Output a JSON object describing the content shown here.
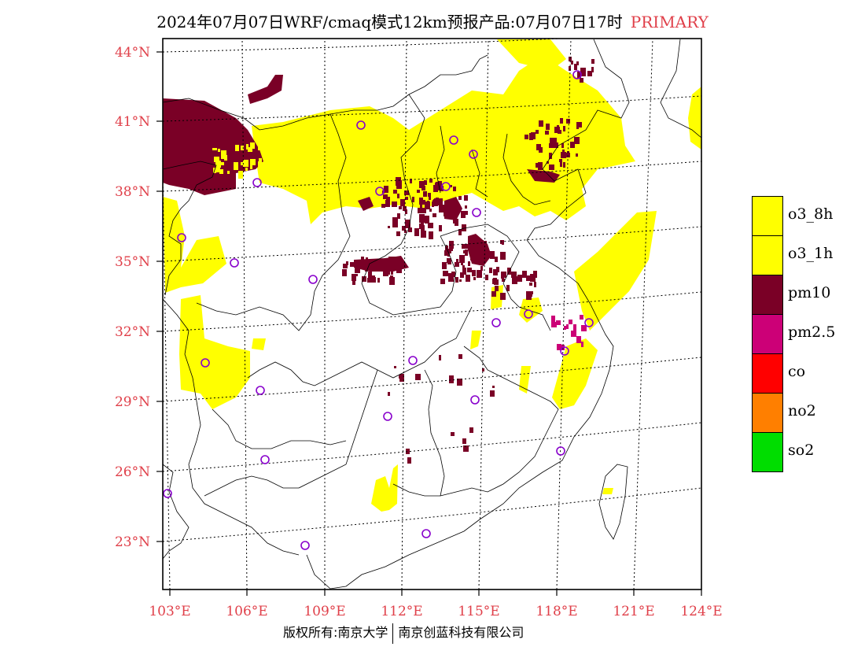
{
  "header": {
    "title": "2024年07月07日WRF/cmaq模式12km预报产品:07月07日17时",
    "tag": "PRIMARY"
  },
  "map": {
    "lat_ticks": [
      "44°N",
      "41°N",
      "38°N",
      "35°N",
      "32°N",
      "29°N",
      "26°N",
      "23°N"
    ],
    "lon_ticks": [
      "103°E",
      "106°E",
      "109°E",
      "112°E",
      "115°E",
      "118°E",
      "121°E",
      "124°E"
    ],
    "tick_color": "#e0404a"
  },
  "legend": {
    "items": [
      {
        "label": "o3_8h",
        "color": "#ffff00"
      },
      {
        "label": "o3_1h",
        "color": "#ffff00"
      },
      {
        "label": "pm10",
        "color": "#7a0026"
      },
      {
        "label": "pm2.5",
        "color": "#cc0077"
      },
      {
        "label": "co",
        "color": "#ff0000"
      },
      {
        "label": "no2",
        "color": "#ff7f00"
      },
      {
        "label": "so2",
        "color": "#00dd00"
      }
    ]
  },
  "footer": {
    "left": "版权所有:南京大学",
    "right": "南京创蓝科技有限公司"
  }
}
